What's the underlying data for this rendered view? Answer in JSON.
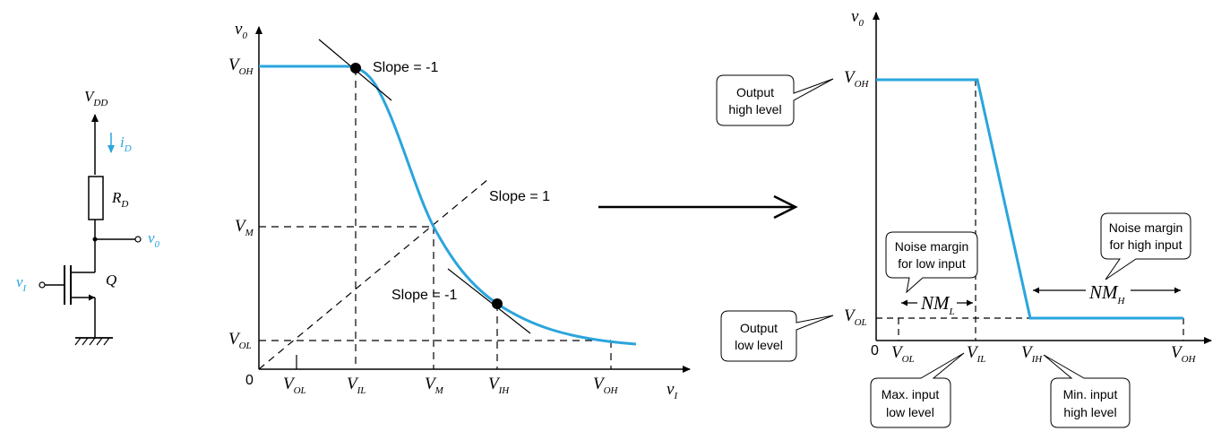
{
  "colors": {
    "curve": "#2aa5dd",
    "ink": "#000000",
    "circuit_label": "#2aa5dd"
  },
  "circuit": {
    "vdd": {
      "main": "V",
      "sub": "DD"
    },
    "id": {
      "main": "i",
      "sub": "D"
    },
    "rd": {
      "main": "R",
      "sub": "D"
    },
    "vo": {
      "main": "v",
      "sub": "0"
    },
    "vi": {
      "main": "v",
      "sub": "I"
    },
    "q": "Q"
  },
  "vtc": {
    "y_axis": {
      "main": "v",
      "sub": "0"
    },
    "x_axis": {
      "main": "v",
      "sub": "I"
    },
    "origin": "0",
    "y_ticks": {
      "voh": {
        "main": "V",
        "sub": "OH"
      },
      "vm": {
        "main": "V",
        "sub": "M"
      },
      "vol": {
        "main": "V",
        "sub": "OL"
      }
    },
    "x_ticks": {
      "vol": {
        "main": "V",
        "sub": "OL"
      },
      "vil": {
        "main": "V",
        "sub": "IL"
      },
      "vm": {
        "main": "V",
        "sub": "M"
      },
      "vih": {
        "main": "V",
        "sub": "IH"
      },
      "voh": {
        "main": "V",
        "sub": "OH"
      }
    },
    "slope_top": "Slope = -1",
    "slope_unity": "Slope = 1",
    "slope_bottom": "Slope = -1"
  },
  "ideal": {
    "y_axis": {
      "main": "v",
      "sub": "0"
    },
    "origin": "0",
    "y_ticks": {
      "voh": {
        "main": "V",
        "sub": "OH"
      },
      "vol": {
        "main": "V",
        "sub": "OL"
      }
    },
    "x_ticks": {
      "vol": {
        "main": "V",
        "sub": "OL"
      },
      "vil": {
        "main": "V",
        "sub": "IL"
      },
      "vih": {
        "main": "V",
        "sub": "IH"
      },
      "voh": {
        "main": "V",
        "sub": "OH"
      }
    },
    "nml": {
      "main": "NM",
      "sub": "L"
    },
    "nmh": {
      "main": "NM",
      "sub": "H"
    },
    "callouts": {
      "output_high": [
        "Output",
        "high level"
      ],
      "output_low": [
        "Output",
        "low level"
      ],
      "nm_low": [
        "Noise margin",
        "for low input"
      ],
      "nm_high": [
        "Noise margin",
        "for high input"
      ],
      "max_input_low": [
        "Max. input",
        "low level"
      ],
      "min_input_high": [
        "Min. input",
        "high level"
      ]
    }
  }
}
